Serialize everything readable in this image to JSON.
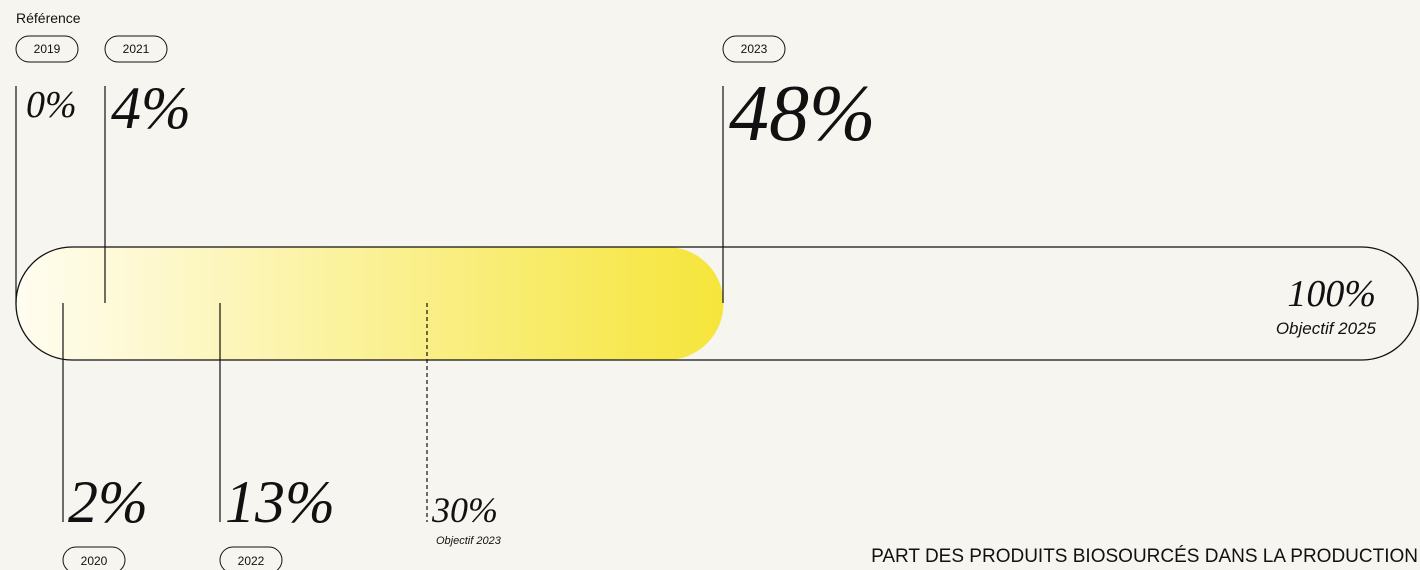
{
  "chart_data": {
    "type": "progress",
    "reference_label": "Référence",
    "title": "PART DES PRODUITS BIOSOURCÉS DANS LA PRODUCTION",
    "categories": [
      "2019",
      "2020",
      "2021",
      "2022",
      "2023"
    ],
    "values": [
      0,
      2,
      4,
      13,
      48
    ],
    "value_labels": [
      "0%",
      "2%",
      "4%",
      "13%",
      "48%"
    ],
    "targets": [
      {
        "value": 30,
        "value_label": "30%",
        "caption": "Objectif 2023"
      },
      {
        "value": 100,
        "value_label": "100%",
        "caption": "Objectif 2025"
      }
    ],
    "color": "#f6e53a"
  }
}
